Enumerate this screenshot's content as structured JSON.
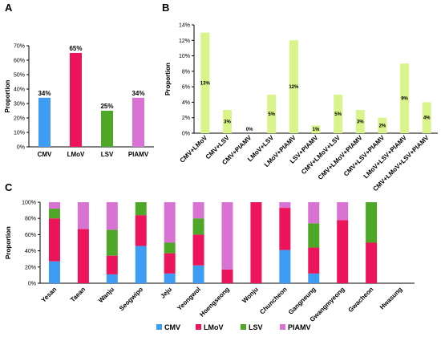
{
  "panels": {
    "a": "A",
    "b": "B",
    "c": "C"
  },
  "colors": {
    "CMV": "#3d9df5",
    "LMoV": "#ec145a",
    "LSV": "#4ea726",
    "PIAMV": "#d873d3",
    "combo": "#d8f48a"
  },
  "chart_data": [
    {
      "panel": "A",
      "type": "bar",
      "categories": [
        "CMV",
        "LMoV",
        "LSV",
        "PIAMV"
      ],
      "values": [
        34,
        65,
        25,
        34
      ],
      "data_labels": [
        "34%",
        "65%",
        "25%",
        "34%"
      ],
      "ylabel": "Proportion",
      "ylim": [
        0,
        70
      ],
      "yticks": [
        "0%",
        "10%",
        "20%",
        "30%",
        "40%",
        "50%",
        "60%",
        "70%"
      ],
      "grid": false
    },
    {
      "panel": "B",
      "type": "bar",
      "categories": [
        "CMV+LMoV",
        "CMV+LSV",
        "CMV+PIAMV",
        "LMoV+LSV",
        "LMoV+PIAMV",
        "LSV+PIAMV",
        "CMV+LMoV+LSV",
        "CMV+LMoV+PIAMV",
        "CMV+LSV+PIAMV",
        "LMoV+LSV+PIAMV",
        "CMV+LMoV+LSV+PIAMV"
      ],
      "values": [
        13,
        3,
        0,
        5,
        12,
        1,
        5,
        3,
        2,
        9,
        4
      ],
      "data_labels": [
        "13%",
        "3%",
        "0%",
        "5%",
        "12%",
        "1%",
        "5%",
        "3%",
        "2%",
        "9%",
        "4%"
      ],
      "ylabel": "Proportion",
      "ylim": [
        0,
        14
      ],
      "yticks": [
        "0%",
        "2%",
        "4%",
        "6%",
        "8%",
        "10%",
        "12%",
        "14%"
      ],
      "grid": false
    },
    {
      "panel": "C",
      "type": "bar",
      "stacked": true,
      "categories": [
        "Yesan",
        "Taean",
        "Wanju",
        "Seogwipo",
        "Jeju",
        "Yeongwol",
        "Hoengseong",
        "Wonju",
        "Chuncheon",
        "Gangneung",
        "Gwangmyeong",
        "Gwacheon",
        "Hwasung"
      ],
      "series": [
        {
          "name": "CMV",
          "values": [
            27,
            0,
            11,
            46,
            12,
            22,
            0,
            0,
            41,
            12,
            0,
            0,
            0
          ]
        },
        {
          "name": "LMoV",
          "values": [
            53,
            67,
            23,
            38,
            25,
            38,
            17,
            100,
            52,
            32,
            78,
            50,
            0
          ]
        },
        {
          "name": "LSV",
          "values": [
            12,
            0,
            32,
            16,
            13,
            20,
            0,
            0,
            0,
            30,
            0,
            50,
            0
          ]
        },
        {
          "name": "PIAMV",
          "values": [
            8,
            33,
            34,
            0,
            50,
            20,
            83,
            0,
            7,
            26,
            22,
            0,
            0
          ]
        }
      ],
      "ylabel": "Proportion",
      "ylim": [
        0,
        100
      ],
      "yticks": [
        "0%",
        "20%",
        "40%",
        "60%",
        "80%",
        "100%"
      ],
      "legend": [
        "CMV",
        "LMoV",
        "LSV",
        "PIAMV"
      ],
      "legend_position": "bottom",
      "grid": false
    }
  ]
}
